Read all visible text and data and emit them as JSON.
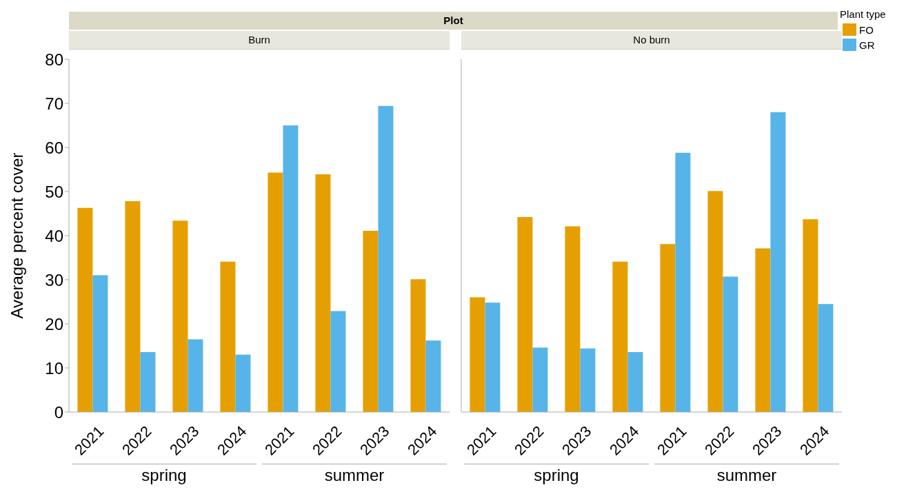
{
  "chart_data": [
    {
      "type": "bar",
      "title": "Plot",
      "subtitle": "Burn",
      "ylabel": "Average percent cover",
      "categories": [
        "2021",
        "2022",
        "2023",
        "2024",
        "2021",
        "2022",
        "2023",
        "2024"
      ],
      "annotations": [
        "spring",
        "summer"
      ],
      "ylim": [
        0,
        80
      ],
      "yticks": [
        0,
        10,
        20,
        30,
        40,
        50,
        60,
        70,
        80
      ],
      "grid": false,
      "legend": false,
      "series": [
        {
          "color": "#e69f00",
          "values": [
            46.3,
            47.8,
            43.4,
            34.1,
            54.3,
            53.9,
            41.1,
            30.1
          ]
        },
        {
          "color": "#56b4e9",
          "values": [
            31.0,
            13.6,
            16.5,
            13.0,
            65.0,
            22.9,
            69.4,
            16.2
          ]
        }
      ]
    },
    {
      "type": "bar",
      "subtitle": "No burn",
      "categories": [
        "2021",
        "2022",
        "2023",
        "2024",
        "2021",
        "2022",
        "2023",
        "2024"
      ],
      "annotations": [
        "spring",
        "summer"
      ],
      "ylim": [
        0,
        80
      ],
      "yticks": [
        0,
        10,
        20,
        30,
        40,
        50,
        60,
        70,
        80
      ],
      "tick_labels": "x",
      "grid": false,
      "legend": "right",
      "legend_title": "Plant type",
      "series": [
        {
          "name": "FO",
          "color": "#e69f00",
          "values": [
            26.0,
            44.2,
            42.1,
            34.1,
            38.1,
            50.1,
            37.1,
            43.7
          ]
        },
        {
          "name": "GR",
          "color": "#56b4e9",
          "values": [
            24.8,
            14.6,
            14.4,
            13.6,
            58.8,
            30.7,
            68.0,
            24.5
          ]
        }
      ]
    }
  ]
}
